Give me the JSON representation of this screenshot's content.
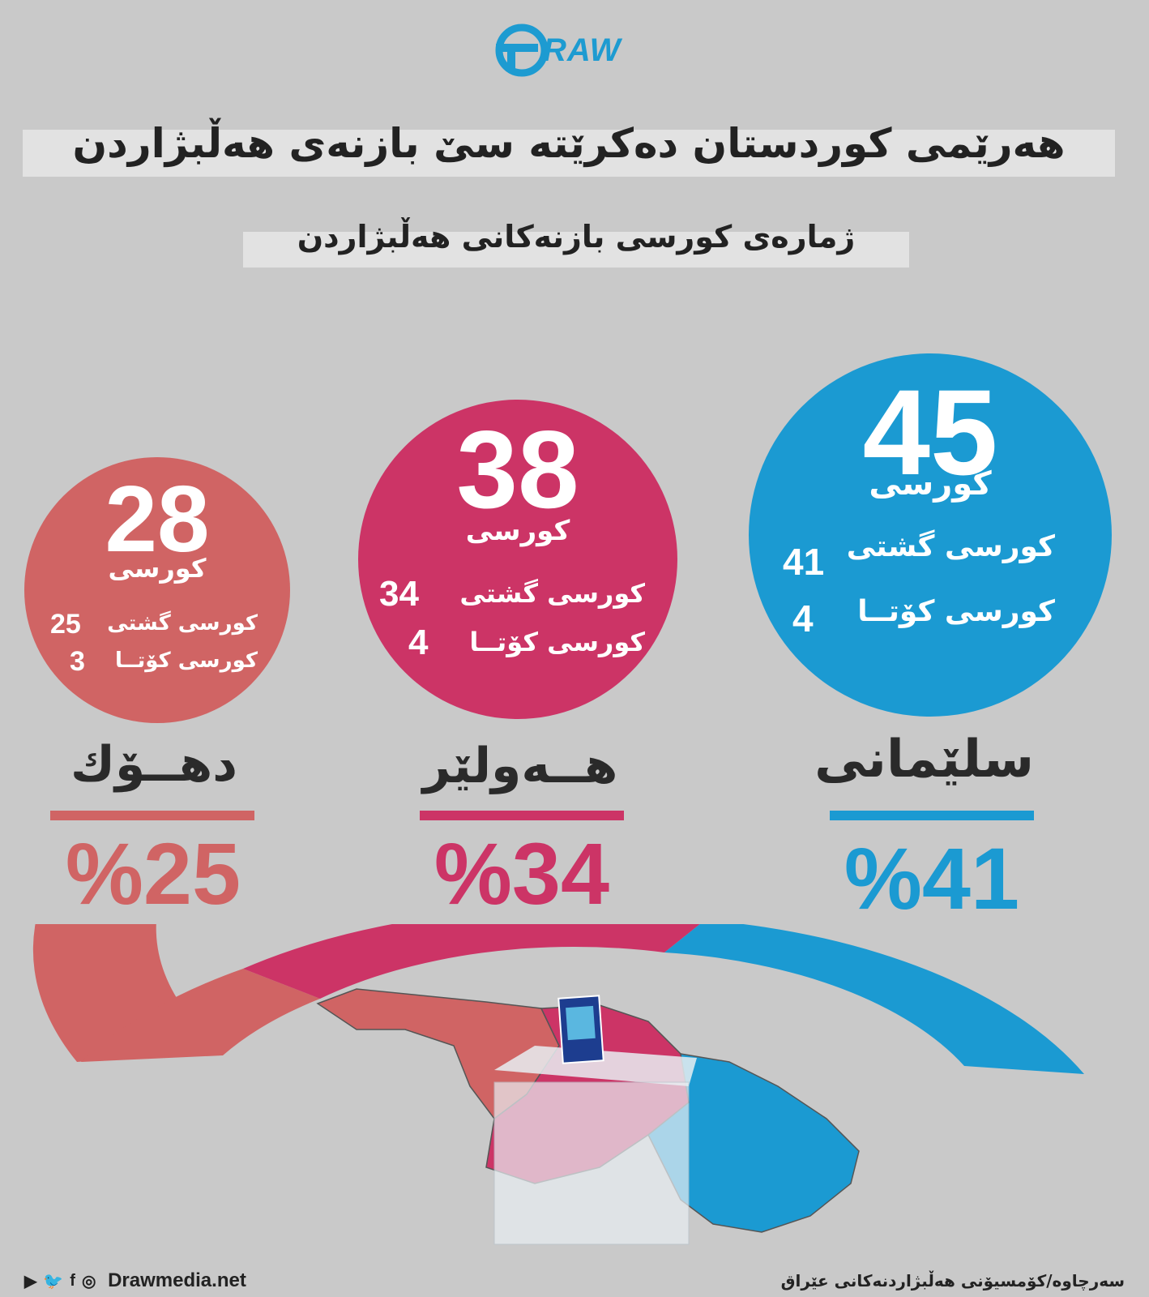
{
  "brand": {
    "logo_text": "RAW",
    "website": "Drawmedia.net"
  },
  "header": {
    "title": "هەرێمی کوردستان دەکرێتە سێ بازنەی هەڵبژاردن",
    "subtitle": "ژمارەی کورسی بازنەکانی هەڵبژاردن"
  },
  "districts": [
    {
      "name": "سلێمانی",
      "seats_total": "45",
      "unit": "کورسی",
      "general_label": "کورسی گشتی",
      "general_count": "41",
      "quota_label": "کورسی کۆتــا",
      "quota_count": "4",
      "percent": "%41",
      "color": "#1b9ad2"
    },
    {
      "name": "هــەولێر",
      "seats_total": "38",
      "unit": "کورسی",
      "general_label": "کورسی گشتی",
      "general_count": "34",
      "quota_label": "کورسی کۆتــا",
      "quota_count": "4",
      "percent": "%34",
      "color": "#cc3466"
    },
    {
      "name": "دهــۆك",
      "seats_total": "28",
      "unit": "کورسی",
      "general_label": "کورسی گشتی",
      "general_count": "25",
      "quota_label": "کورسی کۆتــا",
      "quota_count": "3",
      "percent": "%25",
      "color": "#d06464"
    }
  ],
  "footer": {
    "source": "سەرچاوە/کۆمسیۆنی هەڵبژاردنەکانی عێراق",
    "social_icons": [
      "youtube-icon",
      "twitter-icon",
      "facebook-icon",
      "instagram-icon"
    ]
  }
}
